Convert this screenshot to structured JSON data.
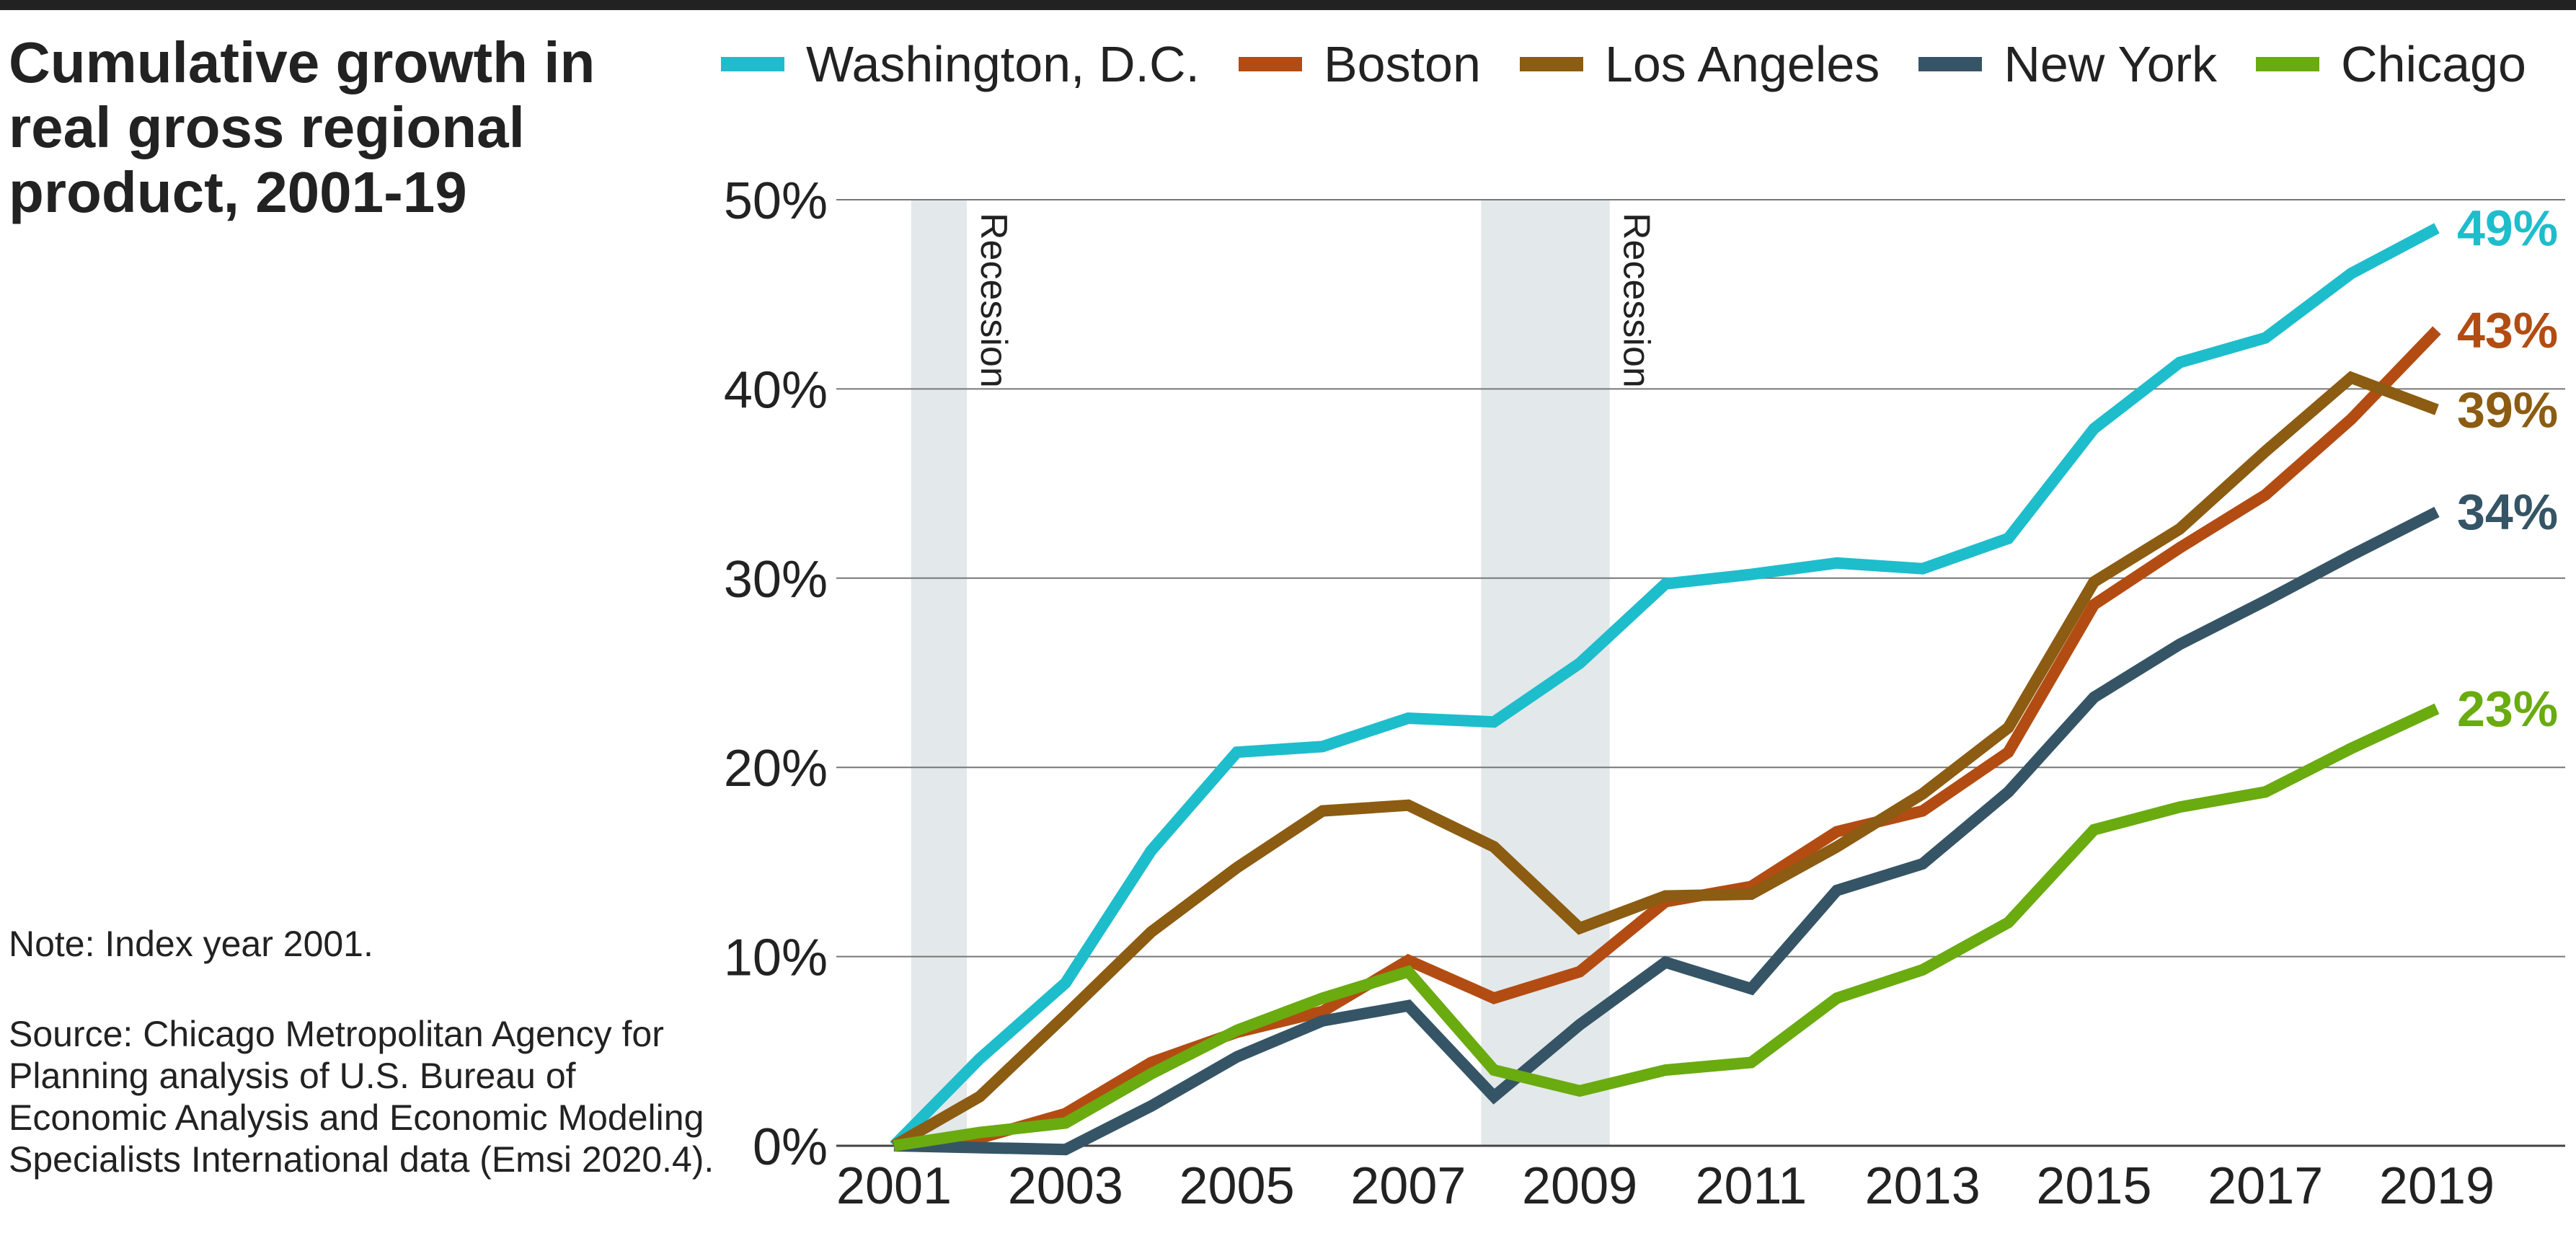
{
  "title": "Cumulative growth in real gross regional product, 2001-19",
  "note": "Note: Index year 2001.",
  "source": "Source: Chicago Metropolitan Agency for Planning analysis of U.S. Bureau of Economic Analysis and Economic Modeling Specialists International data (Emsi 2020.4).",
  "chart_data": {
    "type": "line",
    "title": "Cumulative growth in real gross regional product, 2001-19",
    "xlabel": "",
    "ylabel": "",
    "x": [
      2001,
      2002,
      2003,
      2004,
      2005,
      2006,
      2007,
      2008,
      2009,
      2010,
      2011,
      2012,
      2013,
      2014,
      2015,
      2016,
      2017,
      2018,
      2019
    ],
    "x_tick_labels": [
      "2001",
      "2003",
      "2005",
      "2007",
      "2009",
      "2011",
      "2013",
      "2015",
      "2017",
      "2019"
    ],
    "y_tick_labels": [
      "0%",
      "10%",
      "20%",
      "30%",
      "40%",
      "50%"
    ],
    "xlim": [
      2001,
      2020.5
    ],
    "ylim": [
      0,
      50
    ],
    "grid": "horizontal",
    "legend": "top",
    "series": [
      {
        "name": "Washington, D.C.",
        "color": "#1ebdcc",
        "end_label": "49%",
        "values": [
          0,
          4.6,
          8.6,
          15.6,
          20.8,
          21.1,
          22.6,
          22.4,
          25.5,
          29.7,
          30.2,
          30.8,
          30.5,
          32.1,
          37.9,
          41.4,
          42.7,
          46.1,
          48.5
        ]
      },
      {
        "name": "Boston",
        "color": "#b34c12",
        "end_label": "43%",
        "values": [
          0,
          0.4,
          1.7,
          4.4,
          6.0,
          7.1,
          9.8,
          7.8,
          9.2,
          12.9,
          13.7,
          16.6,
          17.7,
          20.8,
          28.6,
          31.6,
          34.4,
          38.4,
          43.1
        ]
      },
      {
        "name": "Los Angeles",
        "color": "#8b5c12",
        "end_label": "39%",
        "values": [
          0,
          2.6,
          6.9,
          11.3,
          14.7,
          17.7,
          18.0,
          15.8,
          11.5,
          13.2,
          13.3,
          15.8,
          18.6,
          22.1,
          29.8,
          32.6,
          36.7,
          40.6,
          38.9
        ]
      },
      {
        "name": "New York",
        "color": "#355566",
        "end_label": "34%",
        "values": [
          0,
          -0.1,
          -0.2,
          2.1,
          4.7,
          6.6,
          7.4,
          2.6,
          6.4,
          9.7,
          8.3,
          13.5,
          14.9,
          18.7,
          23.7,
          26.5,
          28.8,
          31.2,
          33.5
        ]
      },
      {
        "name": "Chicago",
        "color": "#6aab10",
        "end_label": "23%",
        "values": [
          0,
          0.7,
          1.2,
          3.8,
          6.1,
          7.8,
          9.2,
          4.0,
          2.9,
          4.0,
          4.4,
          7.8,
          9.3,
          11.8,
          16.7,
          17.9,
          18.7,
          21.0,
          23.1
        ]
      }
    ],
    "shaded_regions": [
      {
        "label": "Recession",
        "x_start": 2001.2,
        "x_end": 2001.85,
        "color": "#e3e8ea"
      },
      {
        "label": "Recession",
        "x_start": 2007.85,
        "x_end": 2009.35,
        "color": "#e3e8ea"
      }
    ]
  }
}
